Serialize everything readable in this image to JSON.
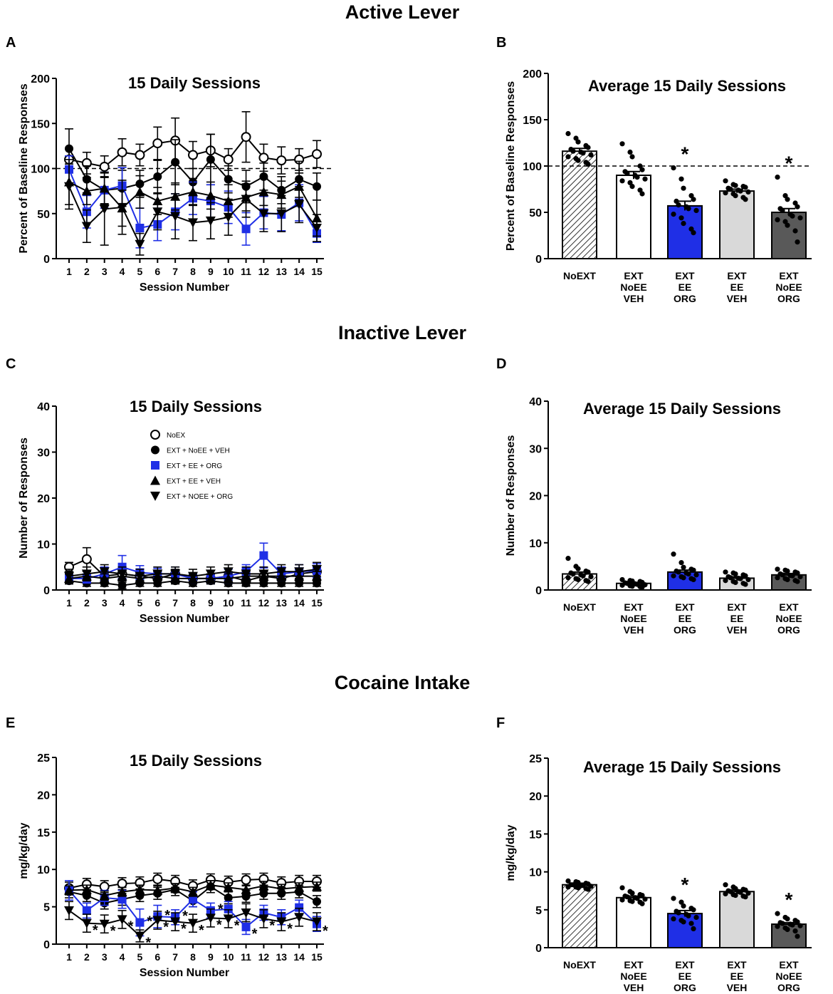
{
  "sections": [
    "Active Lever",
    "Inactive Lever",
    "Cocaine Intake"
  ],
  "colors": {
    "blue": "#1f2fe6",
    "black": "#000000",
    "light_gray": "#d9d9d9",
    "dark_gray": "#595959",
    "white": "#ffffff"
  },
  "chart_data": [
    {
      "panel": "A",
      "type": "line",
      "title": "15 Daily Sessions",
      "xlabel": "Session Number",
      "ylabel": "Percent of Baseline Responses",
      "xlim": [
        0.5,
        15.5
      ],
      "ylim": [
        0,
        200
      ],
      "yticks": [
        0,
        50,
        100,
        150,
        200
      ],
      "x": [
        1,
        2,
        3,
        4,
        5,
        6,
        7,
        8,
        9,
        10,
        11,
        12,
        13,
        14,
        15
      ],
      "reference_line": 100,
      "series": [
        {
          "name": "NoEX",
          "marker": "open-circle",
          "color": "#000000",
          "values": [
            110,
            106,
            102,
            118,
            115,
            128,
            131,
            115,
            120,
            110,
            135,
            112,
            109,
            110,
            116
          ],
          "errors": [
            12,
            12,
            12,
            15,
            12,
            18,
            25,
            15,
            18,
            12,
            28,
            15,
            15,
            12,
            15
          ]
        },
        {
          "name": "EXT + NoEE + VEH",
          "marker": "circle",
          "color": "#000000",
          "values": [
            122,
            88,
            76,
            78,
            83,
            91,
            107,
            85,
            110,
            88,
            80,
            91,
            76,
            88,
            80
          ],
          "errors": [
            22,
            15,
            15,
            20,
            15,
            18,
            25,
            15,
            28,
            15,
            18,
            15,
            15,
            20,
            15
          ]
        },
        {
          "name": "EXT + EE + ORG",
          "marker": "square",
          "color": "#1f2fe6",
          "values": [
            99,
            52,
            76,
            81,
            34,
            38,
            52,
            67,
            64,
            57,
            33,
            51,
            49,
            62,
            28
          ],
          "errors": [
            15,
            18,
            20,
            20,
            22,
            18,
            20,
            18,
            18,
            18,
            18,
            18,
            18,
            20,
            10
          ]
        },
        {
          "name": "EXT + EE + VEH",
          "marker": "triangle-up",
          "color": "#000000",
          "values": [
            85,
            75,
            78,
            56,
            74,
            64,
            69,
            74,
            70,
            64,
            68,
            74,
            71,
            80,
            45
          ],
          "errors": [
            25,
            15,
            18,
            20,
            18,
            15,
            15,
            15,
            15,
            18,
            15,
            15,
            15,
            15,
            20
          ]
        },
        {
          "name": "EXT + NOEE + ORG",
          "marker": "triangle-down",
          "color": "#000000",
          "values": [
            80,
            36,
            55,
            57,
            16,
            52,
            47,
            40,
            42,
            46,
            66,
            50,
            50,
            60,
            34
          ],
          "errors": [
            25,
            18,
            40,
            30,
            12,
            20,
            25,
            20,
            20,
            20,
            20,
            20,
            20,
            20,
            15
          ]
        }
      ]
    },
    {
      "panel": "B",
      "type": "bar",
      "title": "Average 15 Daily Sessions",
      "xlabel": "",
      "ylabel": "Percent of Baseline Responses",
      "ylim": [
        0,
        200
      ],
      "yticks": [
        0,
        50,
        100,
        150,
        200
      ],
      "reference_line": 100,
      "categories": [
        [
          "NoEXT"
        ],
        [
          "EXT",
          "NoEE",
          "VEH"
        ],
        [
          "EXT",
          "EE",
          "ORG"
        ],
        [
          "EXT",
          "EE",
          "VEH"
        ],
        [
          "EXT",
          "NoEE",
          "ORG"
        ]
      ],
      "fills": [
        "hatch",
        "#ffffff",
        "#1f2fe6",
        "#d9d9d9",
        "#595959"
      ],
      "values": [
        116,
        90,
        57,
        73,
        50
      ],
      "errors": [
        3,
        4,
        5,
        2,
        4
      ],
      "significant": [
        false,
        false,
        true,
        false,
        true
      ],
      "points": [
        [
          135,
          130,
          126,
          122,
          120,
          118,
          116,
          115,
          114,
          112,
          110,
          108,
          106,
          104,
          102
        ],
        [
          124,
          115,
          110,
          100,
          96,
          94,
          92,
          90,
          88,
          86,
          84,
          82,
          78,
          74,
          70
        ],
        [
          98,
          86,
          76,
          68,
          64,
          62,
          58,
          56,
          54,
          52,
          48,
          44,
          38,
          32,
          28
        ],
        [
          84,
          80,
          79,
          78,
          77,
          76,
          75,
          74,
          73,
          72,
          71,
          70,
          68,
          66,
          64
        ],
        [
          88,
          68,
          64,
          60,
          56,
          54,
          52,
          48,
          46,
          44,
          42,
          40,
          36,
          30,
          18
        ]
      ],
      "star_text": "*"
    },
    {
      "panel": "C",
      "type": "line",
      "title": "15 Daily Sessions",
      "xlabel": "Session Number",
      "ylabel": "Number of Responses",
      "xlim": [
        0.5,
        15.5
      ],
      "ylim": [
        0,
        40
      ],
      "yticks": [
        0,
        10,
        20,
        30,
        40
      ],
      "x": [
        1,
        2,
        3,
        4,
        5,
        6,
        7,
        8,
        9,
        10,
        11,
        12,
        13,
        14,
        15
      ],
      "legend": {
        "position": "top-center",
        "entries": [
          "NoEX",
          "EXT + NoEE + VEH",
          "EXT + EE + ORG",
          "EXT + EE + VEH",
          "EXT + NOEE + ORG"
        ]
      },
      "series": [
        {
          "name": "NoEX",
          "marker": "open-circle",
          "color": "#000000",
          "values": [
            5.0,
            6.7,
            3.0,
            3.5,
            3.0,
            2.5,
            3.5,
            2.5,
            2.5,
            3.0,
            2.0,
            3.0,
            2.5,
            3.5,
            4.0
          ],
          "errors": [
            1.0,
            2.5,
            1.0,
            1.0,
            1.0,
            1.0,
            1.0,
            1.0,
            1.0,
            1.0,
            1.0,
            1.0,
            1.0,
            1.0,
            1.0
          ]
        },
        {
          "name": "EXT + NoEE + VEH",
          "marker": "circle",
          "color": "#000000",
          "values": [
            2.0,
            1.5,
            1.5,
            1.0,
            1.5,
            1.5,
            2.0,
            1.5,
            2.0,
            1.5,
            1.5,
            1.5,
            1.5,
            1.5,
            1.5
          ],
          "errors": [
            0.7,
            0.7,
            0.7,
            0.7,
            0.7,
            0.7,
            0.7,
            0.7,
            0.7,
            0.7,
            0.7,
            0.7,
            0.7,
            0.7,
            0.7
          ]
        },
        {
          "name": "EXT + EE + ORG",
          "marker": "square",
          "color": "#1f2fe6",
          "values": [
            2.5,
            2.5,
            3.5,
            5.0,
            3.8,
            3.5,
            3.5,
            2.5,
            2.5,
            3.0,
            4.0,
            7.5,
            3.5,
            4.0,
            4.2
          ],
          "errors": [
            1.0,
            1.0,
            1.5,
            2.5,
            1.5,
            1.2,
            1.5,
            1.0,
            1.0,
            1.5,
            1.5,
            2.7,
            1.5,
            1.5,
            1.5
          ]
        },
        {
          "name": "EXT + EE + VEH",
          "marker": "triangle-up",
          "color": "#000000",
          "values": [
            2.5,
            3.0,
            2.5,
            3.0,
            2.5,
            3.0,
            2.5,
            2.5,
            2.5,
            2.5,
            3.0,
            3.0,
            3.0,
            3.0,
            3.0
          ],
          "errors": [
            1.0,
            1.0,
            1.0,
            1.0,
            1.0,
            1.0,
            1.0,
            1.0,
            1.0,
            1.0,
            1.0,
            1.0,
            1.0,
            1.0,
            1.0
          ]
        },
        {
          "name": "EXT + NOEE + ORG",
          "marker": "triangle-down",
          "color": "#000000",
          "values": [
            3.0,
            3.5,
            4.0,
            3.5,
            3.0,
            3.5,
            3.5,
            3.0,
            3.5,
            4.0,
            3.5,
            3.5,
            4.0,
            4.0,
            4.5
          ],
          "errors": [
            1.5,
            1.5,
            1.5,
            1.5,
            1.5,
            1.5,
            1.5,
            1.5,
            1.5,
            1.5,
            1.5,
            1.5,
            1.5,
            1.5,
            1.5
          ]
        }
      ]
    },
    {
      "panel": "D",
      "type": "bar",
      "title": "Average 15 Daily Sessions",
      "xlabel": "",
      "ylabel": "Number of Responses",
      "ylim": [
        0,
        40
      ],
      "yticks": [
        0,
        10,
        20,
        30,
        40
      ],
      "categories": [
        [
          "NoEXT"
        ],
        [
          "EXT",
          "NoEE",
          "VEH"
        ],
        [
          "EXT",
          "EE",
          "ORG"
        ],
        [
          "EXT",
          "EE",
          "VEH"
        ],
        [
          "EXT",
          "NoEE",
          "ORG"
        ]
      ],
      "fills": [
        "hatch",
        "#ffffff",
        "#1f2fe6",
        "#d9d9d9",
        "#595959"
      ],
      "values": [
        3.4,
        1.4,
        3.8,
        2.5,
        3.2
      ],
      "errors": [
        0.4,
        0.2,
        0.4,
        0.3,
        0.3
      ],
      "significant": [
        false,
        false,
        false,
        false,
        false
      ],
      "points": [
        [
          6.7,
          5.0,
          4.5,
          4.0,
          3.8,
          3.6,
          3.4,
          3.2,
          3.0,
          2.8,
          2.6,
          2.4,
          2.2,
          2.0,
          1.8
        ],
        [
          2.2,
          2.0,
          1.9,
          1.8,
          1.6,
          1.5,
          1.4,
          1.3,
          1.2,
          1.1,
          1.0,
          0.9,
          0.8,
          0.7,
          0.6
        ],
        [
          7.6,
          5.8,
          4.8,
          4.4,
          4.2,
          4.0,
          3.8,
          3.6,
          3.4,
          3.2,
          3.0,
          2.8,
          2.6,
          2.4,
          2.2
        ],
        [
          3.8,
          3.6,
          3.4,
          3.2,
          3.0,
          2.8,
          2.6,
          2.5,
          2.4,
          2.2,
          2.0,
          1.8,
          1.6,
          1.4,
          1.2
        ],
        [
          4.4,
          4.2,
          4.0,
          3.8,
          3.6,
          3.4,
          3.2,
          3.1,
          3.0,
          2.8,
          2.6,
          2.4,
          2.2,
          2.0,
          1.8
        ]
      ],
      "star_text": "*"
    },
    {
      "panel": "E",
      "type": "line",
      "title": "15 Daily Sessions",
      "xlabel": "Session Number",
      "ylabel": "mg/kg/day",
      "xlim": [
        0.5,
        15.5
      ],
      "ylim": [
        0,
        25
      ],
      "yticks": [
        0,
        5,
        10,
        15,
        20,
        25
      ],
      "x": [
        1,
        2,
        3,
        4,
        5,
        6,
        7,
        8,
        9,
        10,
        11,
        12,
        13,
        14,
        15
      ],
      "series": [
        {
          "name": "NoEX",
          "marker": "open-circle",
          "color": "#000000",
          "values": [
            7.5,
            8.0,
            7.7,
            8.1,
            8.2,
            8.7,
            8.4,
            7.8,
            8.6,
            8.3,
            8.6,
            8.7,
            8.2,
            8.4,
            8.4
          ],
          "errors": [
            0.8,
            0.8,
            0.8,
            0.8,
            0.8,
            0.8,
            0.8,
            0.8,
            0.8,
            0.8,
            0.8,
            0.8,
            0.8,
            0.8,
            0.8
          ]
        },
        {
          "name": "EXT + NoEE + VEH",
          "marker": "circle",
          "color": "#000000",
          "values": [
            7.0,
            6.5,
            5.5,
            6.0,
            6.5,
            6.8,
            7.3,
            5.8,
            7.7,
            6.2,
            6.4,
            6.8,
            6.8,
            7.0,
            5.7
          ],
          "errors": [
            0.8,
            0.8,
            0.8,
            0.8,
            0.8,
            0.8,
            0.8,
            0.8,
            0.8,
            0.8,
            0.8,
            0.8,
            0.8,
            0.8,
            0.8
          ]
        },
        {
          "name": "EXT + EE + ORG",
          "marker": "square",
          "color": "#1f2fe6",
          "values": [
            7.2,
            4.5,
            6.2,
            6.0,
            2.9,
            3.7,
            3.6,
            6.0,
            4.5,
            4.7,
            2.3,
            4.2,
            3.6,
            4.9,
            2.7
          ],
          "errors": [
            1.3,
            1.0,
            1.0,
            1.2,
            1.8,
            1.5,
            1.0,
            1.0,
            1.0,
            1.0,
            1.0,
            1.0,
            1.0,
            1.0,
            1.0
          ]
        },
        {
          "name": "EXT + EE + VEH",
          "marker": "triangle-up",
          "color": "#000000",
          "values": [
            7.2,
            7.3,
            6.5,
            7.0,
            7.3,
            7.2,
            7.5,
            7.0,
            7.9,
            7.6,
            7.3,
            7.8,
            7.4,
            7.6,
            7.7
          ],
          "errors": [
            0.6,
            0.6,
            0.6,
            0.6,
            0.6,
            0.6,
            0.6,
            0.6,
            0.6,
            0.6,
            0.6,
            0.6,
            0.6,
            0.6,
            0.6
          ]
        },
        {
          "name": "EXT + NOEE + ORG",
          "marker": "triangle-down",
          "color": "#000000",
          "values": [
            4.5,
            2.8,
            2.7,
            3.3,
            1.1,
            3.2,
            3.0,
            2.8,
            3.5,
            3.4,
            4.2,
            3.4,
            3.0,
            3.6,
            3.0
          ],
          "errors": [
            1.2,
            1.2,
            1.2,
            1.2,
            0.8,
            1.2,
            1.2,
            1.2,
            1.2,
            1.2,
            1.2,
            1.2,
            1.2,
            1.2,
            1.2
          ]
        }
      ],
      "star_text": "*",
      "stars_upper": [
        5,
        6,
        7,
        9
      ],
      "stars_lower": [
        2,
        3,
        4,
        5,
        6,
        7,
        8,
        9,
        10,
        11,
        12,
        13,
        15
      ]
    },
    {
      "panel": "F",
      "type": "bar",
      "title": "Average 15 Daily Sessions",
      "xlabel": "",
      "ylabel": "mg/kg/day",
      "ylim": [
        0,
        25
      ],
      "yticks": [
        0,
        5,
        10,
        15,
        20,
        25
      ],
      "categories": [
        [
          "NoEXT"
        ],
        [
          "EXT",
          "NoEE",
          "VEH"
        ],
        [
          "EXT",
          "EE",
          "ORG"
        ],
        [
          "EXT",
          "EE",
          "VEH"
        ],
        [
          "EXT",
          "NoEE",
          "ORG"
        ]
      ],
      "fills": [
        "hatch",
        "#ffffff",
        "#1f2fe6",
        "#d9d9d9",
        "#595959"
      ],
      "values": [
        8.3,
        6.6,
        4.5,
        7.4,
        3.1
      ],
      "errors": [
        0.2,
        0.2,
        0.4,
        0.2,
        0.2
      ],
      "significant": [
        false,
        false,
        true,
        false,
        true
      ],
      "points": [
        [
          8.8,
          8.7,
          8.6,
          8.5,
          8.4,
          8.3,
          8.3,
          8.2,
          8.2,
          8.1,
          8.0,
          8.0,
          7.9,
          7.8,
          7.7
        ],
        [
          7.9,
          7.4,
          7.2,
          7.0,
          6.9,
          6.8,
          6.7,
          6.6,
          6.5,
          6.4,
          6.3,
          6.2,
          6.1,
          6.0,
          5.8
        ],
        [
          6.5,
          6.0,
          5.5,
          5.2,
          5.0,
          4.8,
          4.6,
          4.4,
          4.2,
          4.0,
          3.8,
          3.6,
          3.4,
          3.2,
          2.5
        ],
        [
          8.3,
          8.0,
          7.8,
          7.7,
          7.6,
          7.5,
          7.4,
          7.4,
          7.3,
          7.2,
          7.1,
          7.0,
          6.9,
          6.8,
          6.7
        ],
        [
          4.5,
          4.0,
          3.8,
          3.6,
          3.4,
          3.3,
          3.2,
          3.1,
          3.0,
          2.9,
          2.8,
          2.6,
          2.4,
          2.2,
          1.5
        ]
      ],
      "star_text": "*"
    }
  ]
}
